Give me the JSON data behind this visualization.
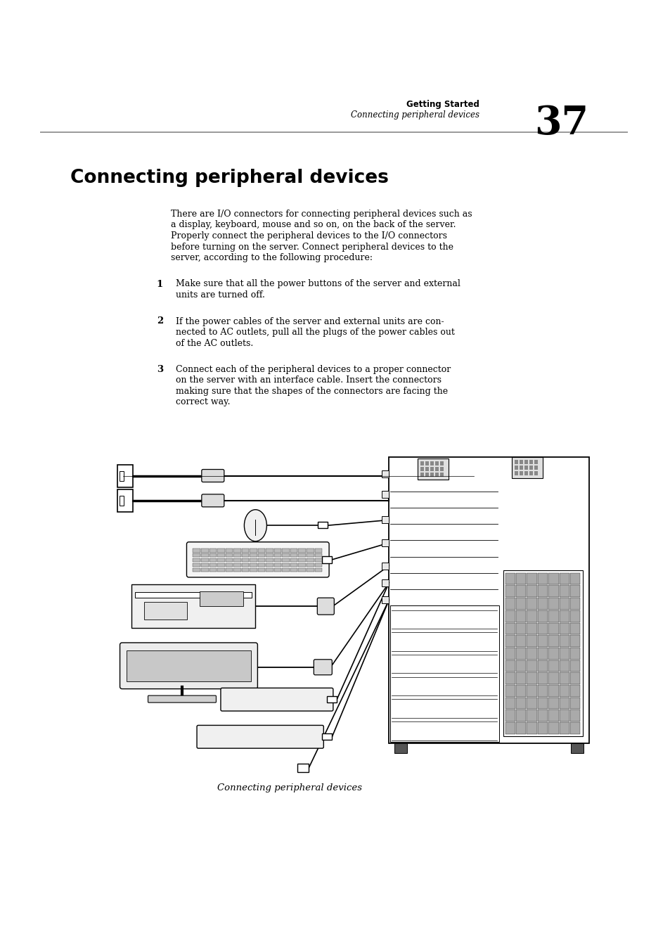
{
  "page_bg": "#ffffff",
  "header_bold": "Getting Started",
  "header_italic": "Connecting peripheral devices",
  "page_number": "37",
  "title": "Connecting peripheral devices",
  "intro_lines": [
    "There are I/O connectors for connecting peripheral devices such as",
    "a display, keyboard, mouse and so on, on the back of the server.",
    "Properly connect the peripheral devices to the I/O connectors",
    "before turning on the server. Connect peripheral devices to the",
    "server, according to the following procedure:"
  ],
  "steps": [
    {
      "number": "1",
      "lines": [
        "Make sure that all the power buttons of the server and external",
        "units are turned off."
      ]
    },
    {
      "number": "2",
      "lines": [
        "If the power cables of the server and external units are con-",
        "nected to AC outlets, pull all the plugs of the power cables out",
        "of the AC outlets."
      ]
    },
    {
      "number": "3",
      "lines": [
        "Connect each of the peripheral devices to a proper connector",
        "on the server with an interface cable. Insert the connectors",
        "making sure that the shapes of the connectors are facing the",
        "correct way."
      ]
    }
  ],
  "caption": "Connecting peripheral devices",
  "rule_color": "#888888",
  "text_color": "#000000"
}
